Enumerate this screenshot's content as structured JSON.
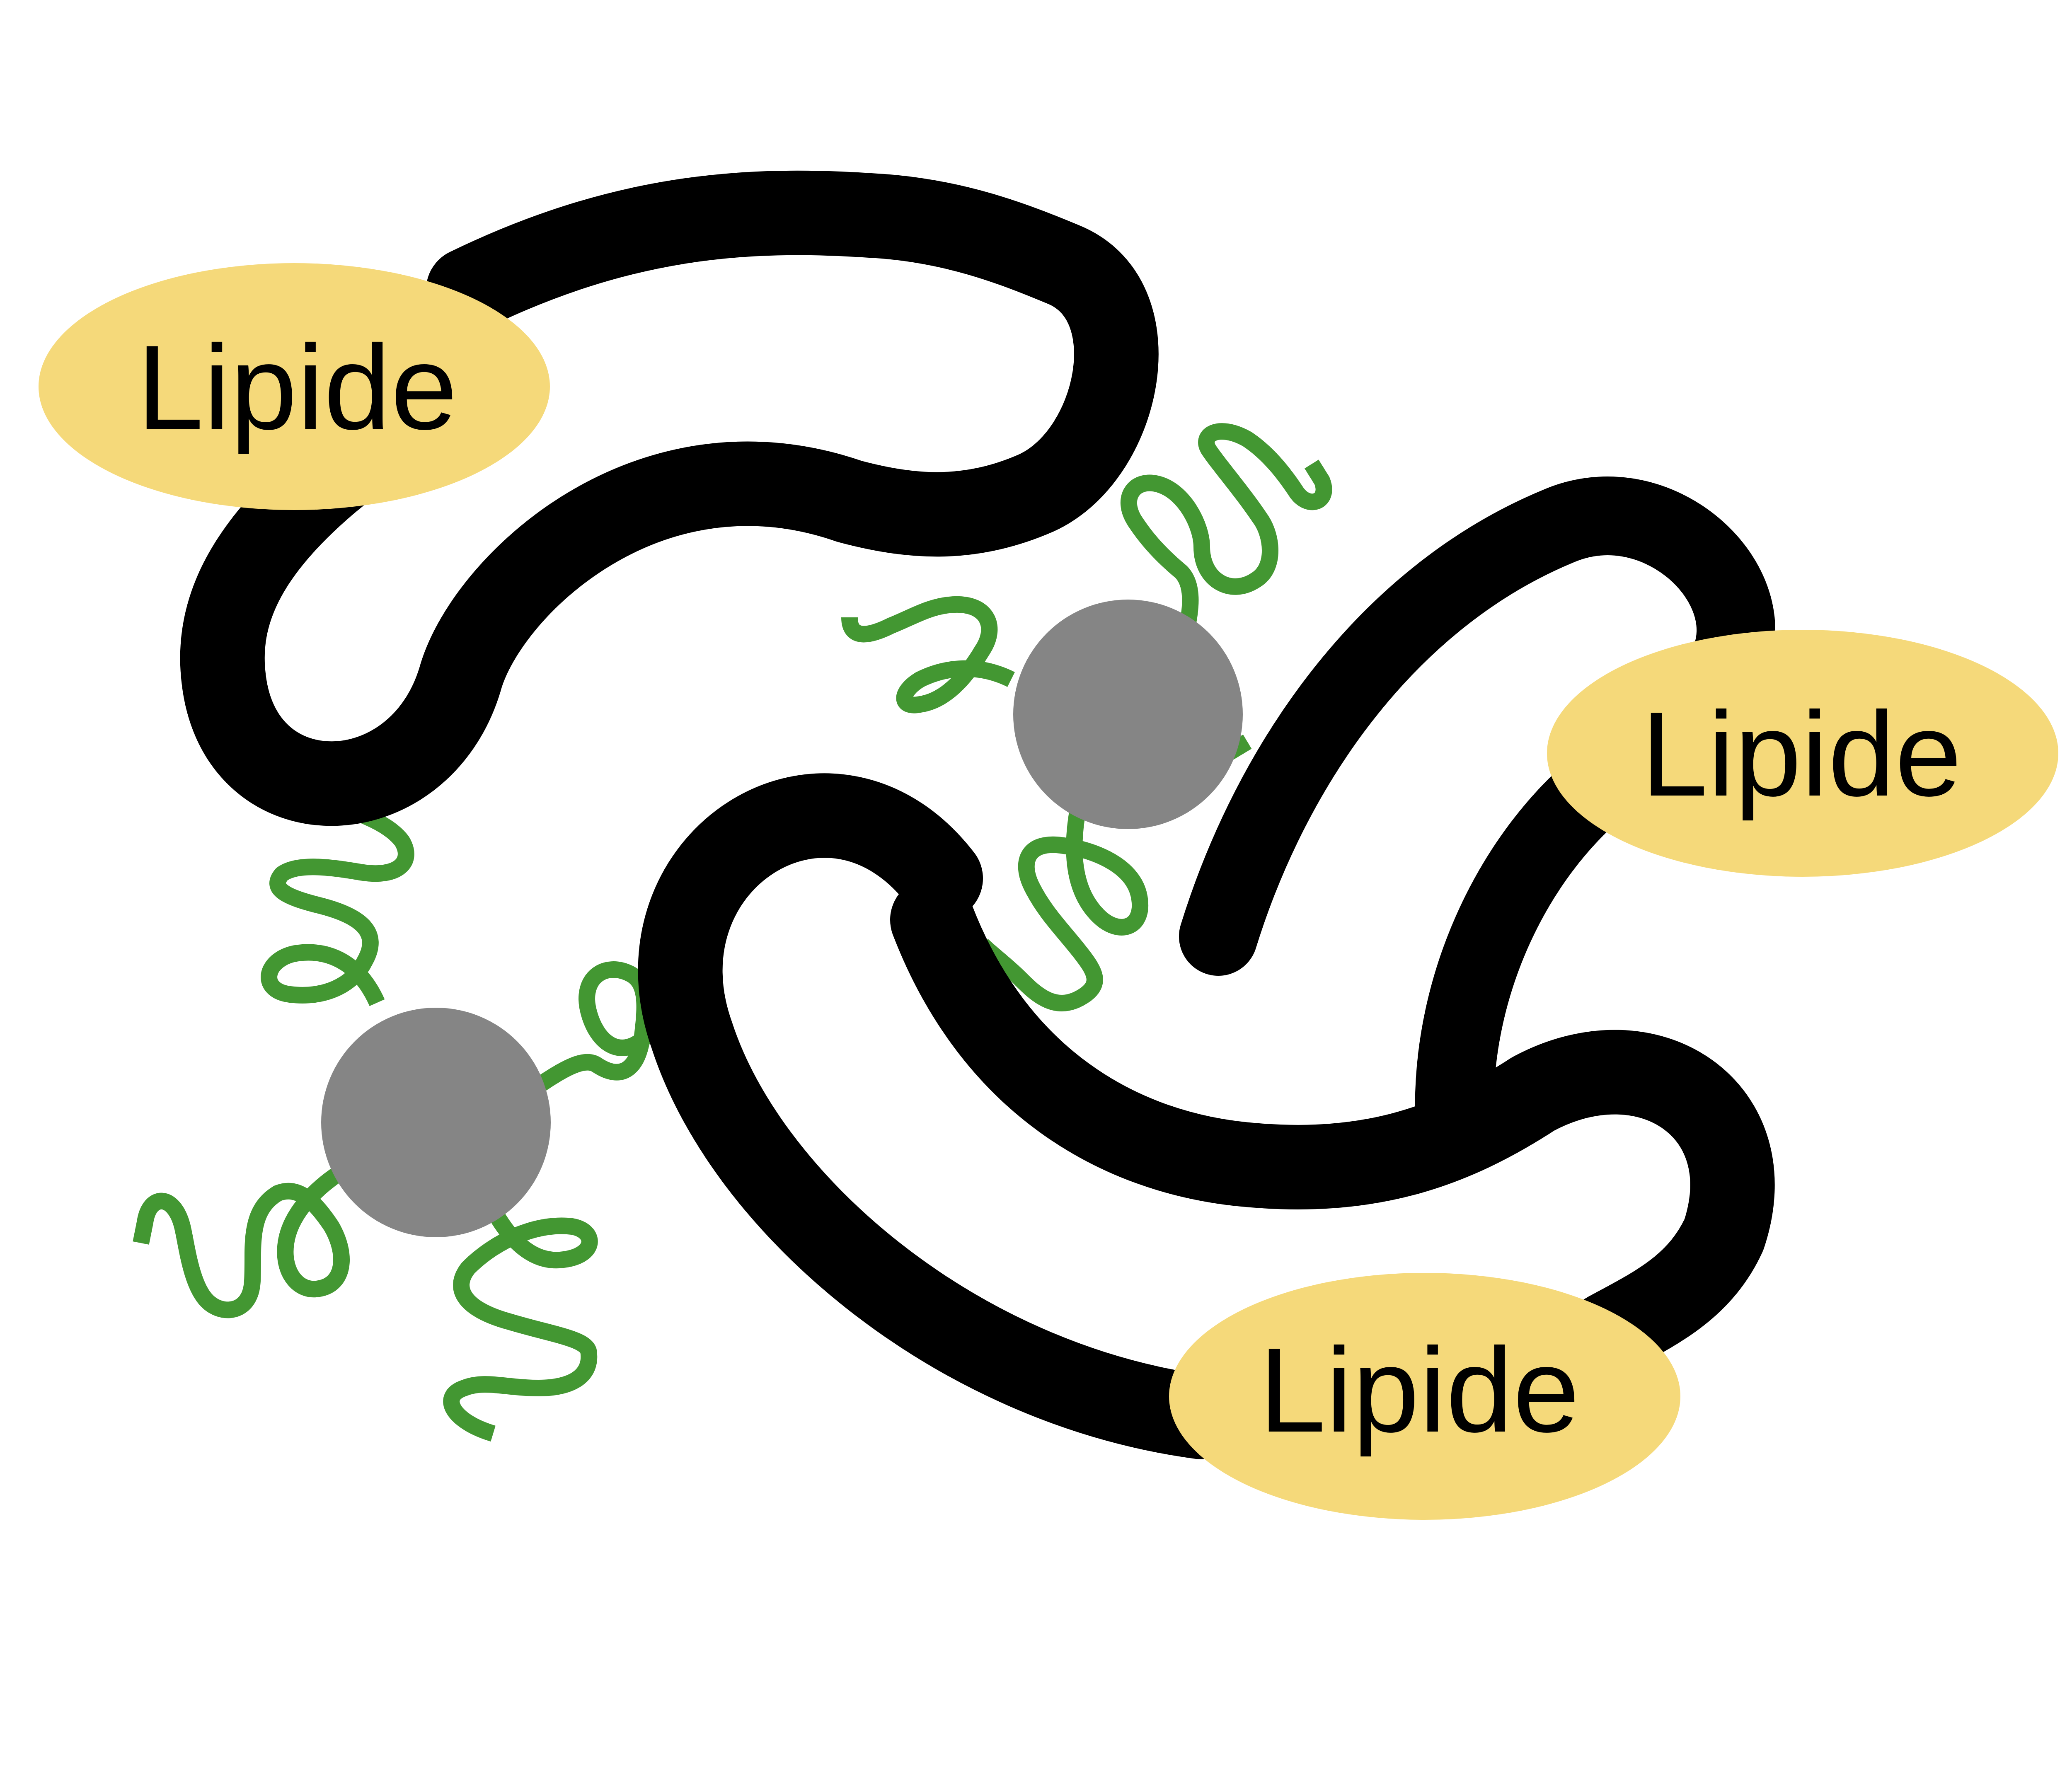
{
  "colors": {
    "background": "#ffffff",
    "polymer_chain": "#000000",
    "lipid_fill": "#f5d97a",
    "particle_core": "#858585",
    "tail": "#439732"
  },
  "lipids": [
    {
      "label": "Lipide"
    },
    {
      "label": "Lipide"
    },
    {
      "label": "Lipide"
    }
  ]
}
